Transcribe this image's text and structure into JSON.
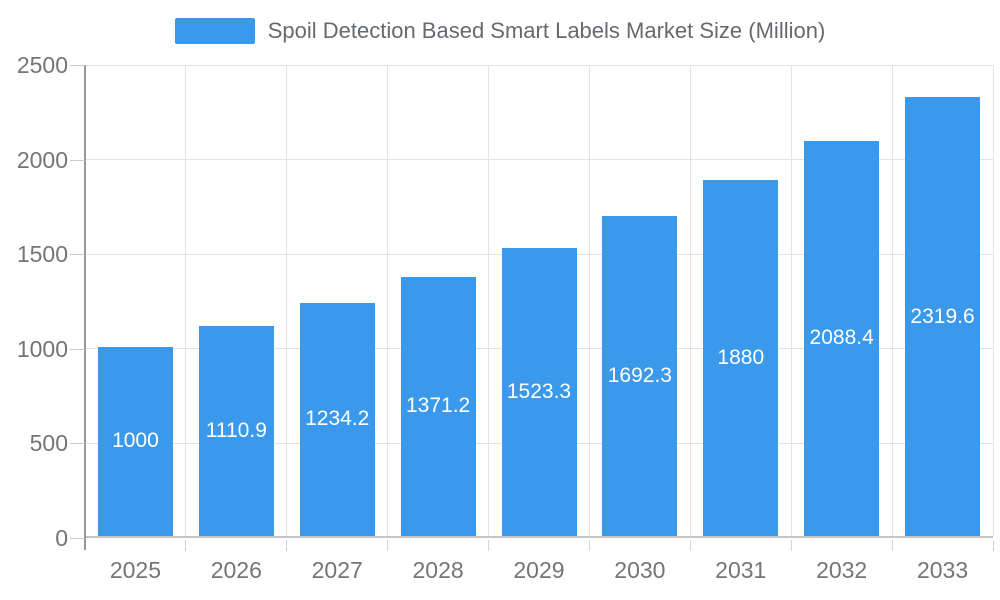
{
  "chart_data": {
    "type": "bar",
    "title": "Spoil Detection Based Smart Labels Market Size (Million)",
    "categories": [
      "2025",
      "2026",
      "2027",
      "2028",
      "2029",
      "2030",
      "2031",
      "2032",
      "2033"
    ],
    "values": [
      1000,
      1110.9,
      1234.2,
      1371.2,
      1523.3,
      1692.3,
      1880,
      2088.4,
      2319.6
    ],
    "value_labels": [
      "1000",
      "1110.9",
      "1234.2",
      "1371.2",
      "1523.3",
      "1692.3",
      "1880",
      "2088.4",
      "2319.6"
    ],
    "xlabel": "",
    "ylabel": "",
    "ylim": [
      0,
      2500
    ],
    "yticks": [
      0,
      500,
      1000,
      1500,
      2000,
      2500
    ],
    "grid": true,
    "legend_position": "top",
    "bar_color": "#3B99EC",
    "bar_label_color": "#ffffff",
    "axis_text_color": "#757575",
    "grid_color": "#E3E3E3",
    "axis_line_color": "#979797"
  }
}
